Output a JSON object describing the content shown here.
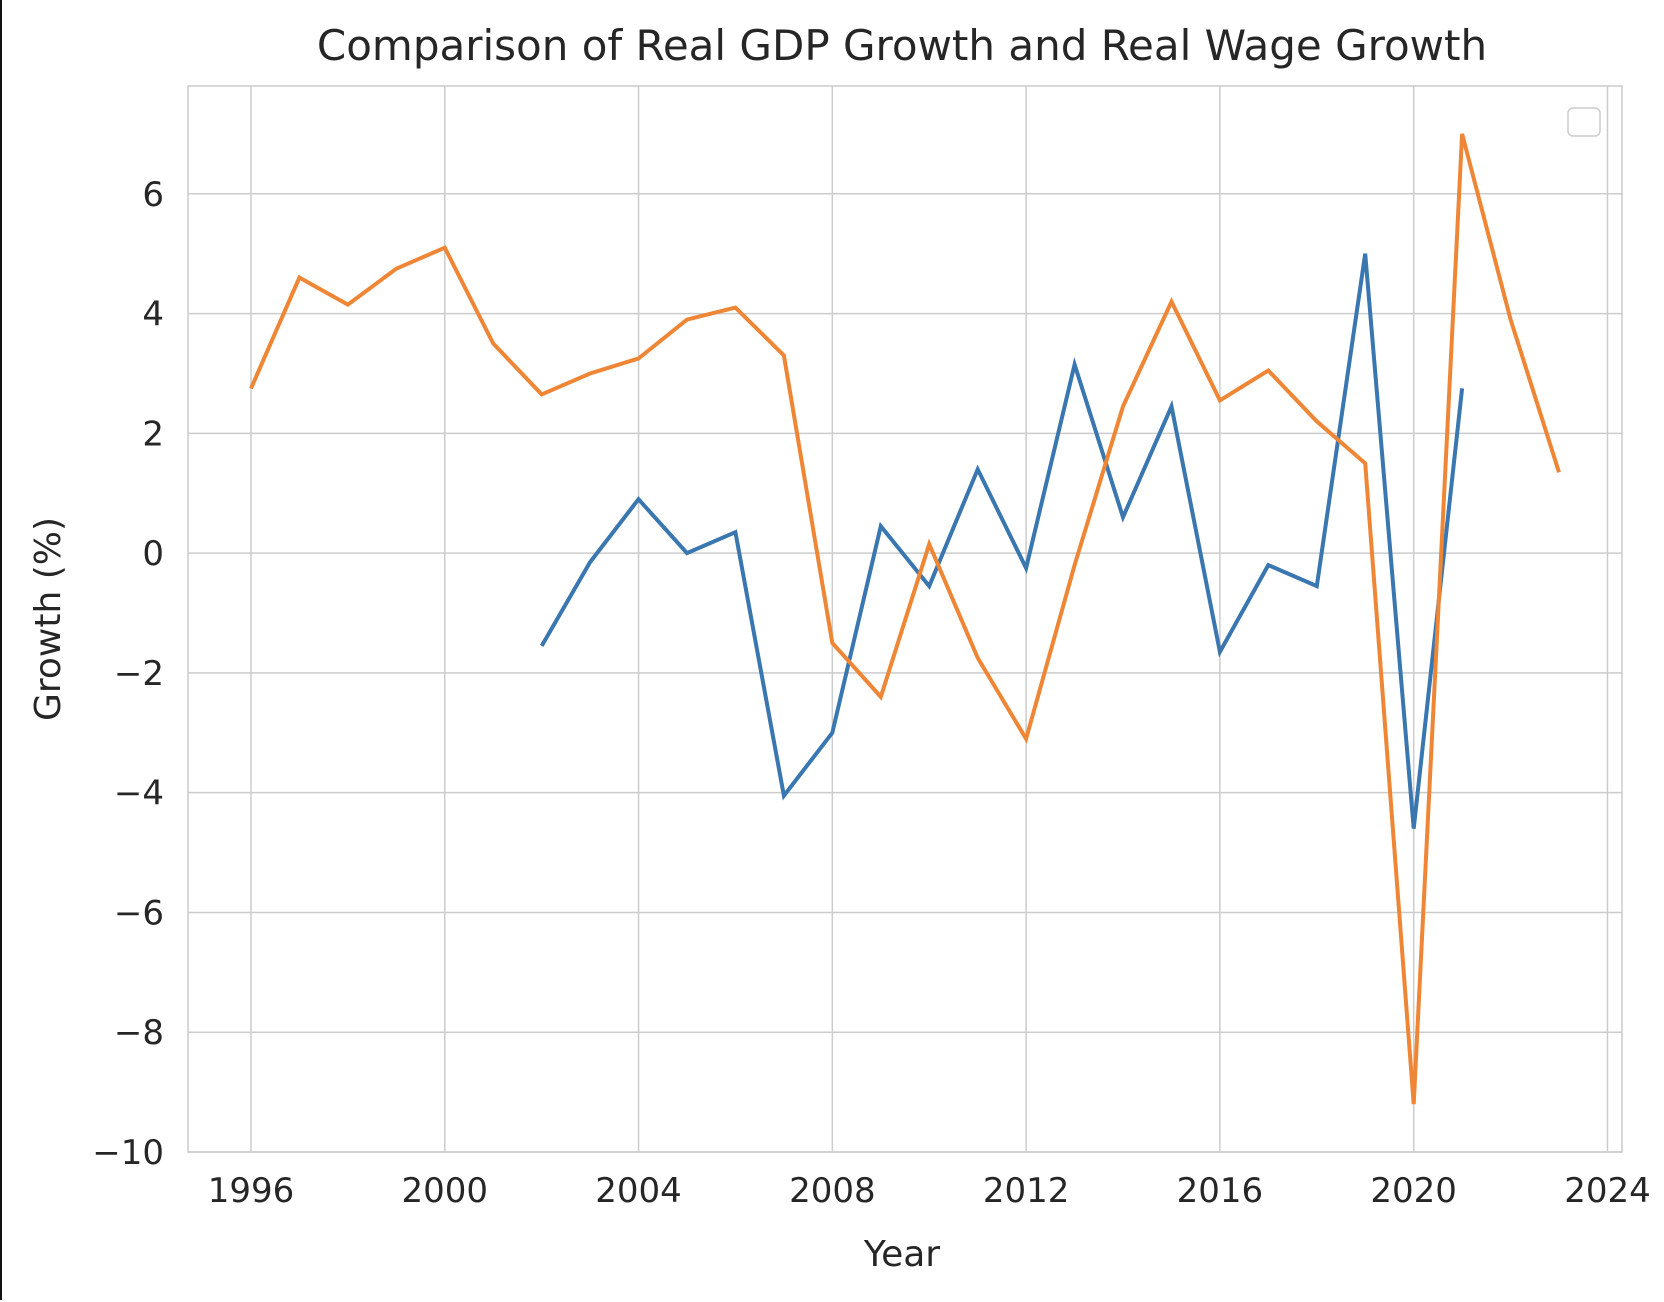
{
  "chart_data": {
    "type": "line",
    "title": "Comparison of Real GDP Growth and Real Wage Growth",
    "xlabel": "Year",
    "ylabel": "Growth (%)",
    "xlim": [
      1994.7,
      2024.3
    ],
    "ylim": [
      -10,
      7.8
    ],
    "x_ticks": [
      "1996",
      "2000",
      "2004",
      "2008",
      "2012",
      "2016",
      "2020",
      "2024"
    ],
    "y_ticks": [
      "−10",
      "−8",
      "−6",
      "−4",
      "−2",
      "0",
      "2",
      "4",
      "6"
    ],
    "grid": true,
    "legend": "top-right (empty)",
    "series": [
      {
        "color": "#3a76af",
        "x": [
          2002,
          2003,
          2004,
          2005,
          2006,
          2007,
          2008,
          2009,
          2010,
          2011,
          2012,
          2013,
          2014,
          2015,
          2016,
          2017,
          2018,
          2019,
          2020,
          2021
        ],
        "y": [
          -1.55,
          -0.15,
          0.9,
          0.0,
          0.35,
          -4.05,
          -3.0,
          0.45,
          -0.55,
          1.4,
          -0.25,
          3.15,
          0.6,
          2.45,
          -1.65,
          -0.2,
          -0.55,
          5.0,
          -4.6,
          2.75
        ]
      },
      {
        "color": "#ef8636",
        "x": [
          1996,
          1997,
          1998,
          1999,
          2000,
          2001,
          2002,
          2003,
          2004,
          2005,
          2006,
          2007,
          2008,
          2009,
          2010,
          2011,
          2012,
          2013,
          2014,
          2015,
          2016,
          2017,
          2018,
          2019,
          2020,
          2021,
          2022,
          2023
        ],
        "y": [
          2.75,
          4.6,
          4.15,
          4.75,
          5.1,
          3.5,
          2.65,
          3.0,
          3.25,
          3.9,
          4.1,
          3.3,
          -1.5,
          -2.4,
          0.15,
          -1.75,
          -3.1,
          -0.2,
          2.45,
          4.2,
          2.55,
          3.05,
          2.2,
          1.5,
          -9.2,
          7.0,
          3.9,
          1.35
        ]
      }
    ]
  }
}
